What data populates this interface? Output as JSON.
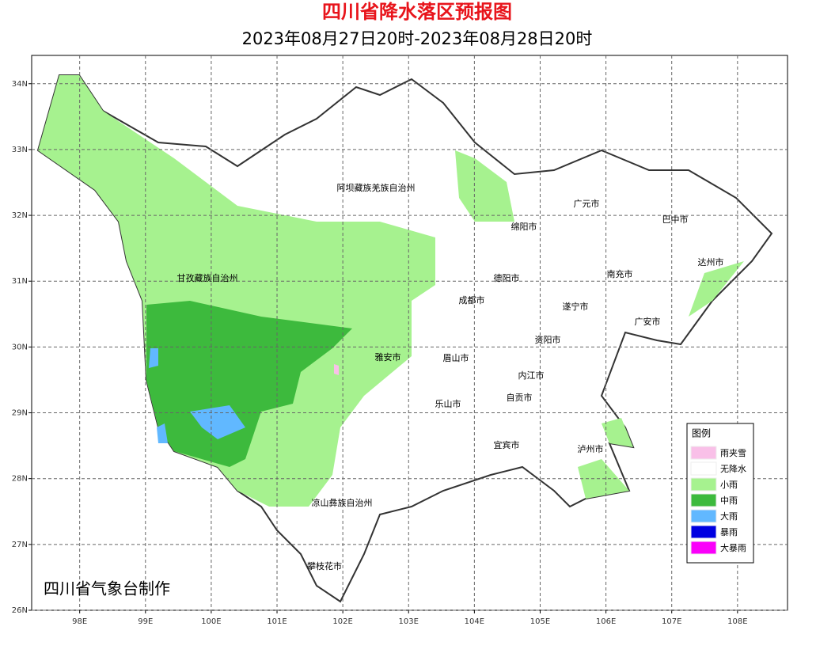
{
  "header": {
    "title": "四川省降水落区预报图",
    "subtitle": "2023年08月27日20时-2023年08月28日20时"
  },
  "map": {
    "xlim": [
      97.27,
      108.76
    ],
    "ylim": [
      26,
      34.43
    ],
    "xticks": [
      {
        "value": 98,
        "label": "98E"
      },
      {
        "value": 99,
        "label": "99E"
      },
      {
        "value": 100,
        "label": "100E"
      },
      {
        "value": 101,
        "label": "101E"
      },
      {
        "value": 102,
        "label": "102E"
      },
      {
        "value": 103,
        "label": "103E"
      },
      {
        "value": 104,
        "label": "104E"
      },
      {
        "value": 105,
        "label": "105E"
      },
      {
        "value": 106,
        "label": "106E"
      },
      {
        "value": 107,
        "label": "107E"
      },
      {
        "value": 108,
        "label": "108E"
      }
    ],
    "yticks": [
      {
        "value": 26,
        "label": "26N"
      },
      {
        "value": 27,
        "label": "27N"
      },
      {
        "value": 28,
        "label": "28N"
      },
      {
        "value": 29,
        "label": "29N"
      },
      {
        "value": 30,
        "label": "30N"
      },
      {
        "value": 31,
        "label": "31N"
      },
      {
        "value": 32,
        "label": "32N"
      },
      {
        "value": 33,
        "label": "33N"
      },
      {
        "value": 34,
        "label": "34N"
      }
    ],
    "grid": true,
    "cities": [
      "阿坝藏族羌族自治州",
      "广元市",
      "巴中市",
      "绵阳市",
      "达州市",
      "甘孜藏族自治州",
      "德阳市",
      "南充市",
      "成都市",
      "遂宁市",
      "广安市",
      "资阳市",
      "雅安市",
      "眉山市",
      "内江市",
      "自贡市",
      "乐山市",
      "宜宾市",
      "泸州市",
      "凉山彝族自治州",
      "攀枝花市"
    ]
  },
  "legend": {
    "title": "图例",
    "items": [
      {
        "label": "雨夹雪",
        "color": "#f9c0e8"
      },
      {
        "label": "无降水",
        "color": "#ffffff"
      },
      {
        "label": "小雨",
        "color": "#a6f28f"
      },
      {
        "label": "中雨",
        "color": "#3dba3d"
      },
      {
        "label": "大雨",
        "color": "#61b8ff"
      },
      {
        "label": "暴雨",
        "color": "#0000e1"
      },
      {
        "label": "大暴雨",
        "color": "#fa00fa"
      }
    ]
  },
  "credit": "四川省气象台制作"
}
